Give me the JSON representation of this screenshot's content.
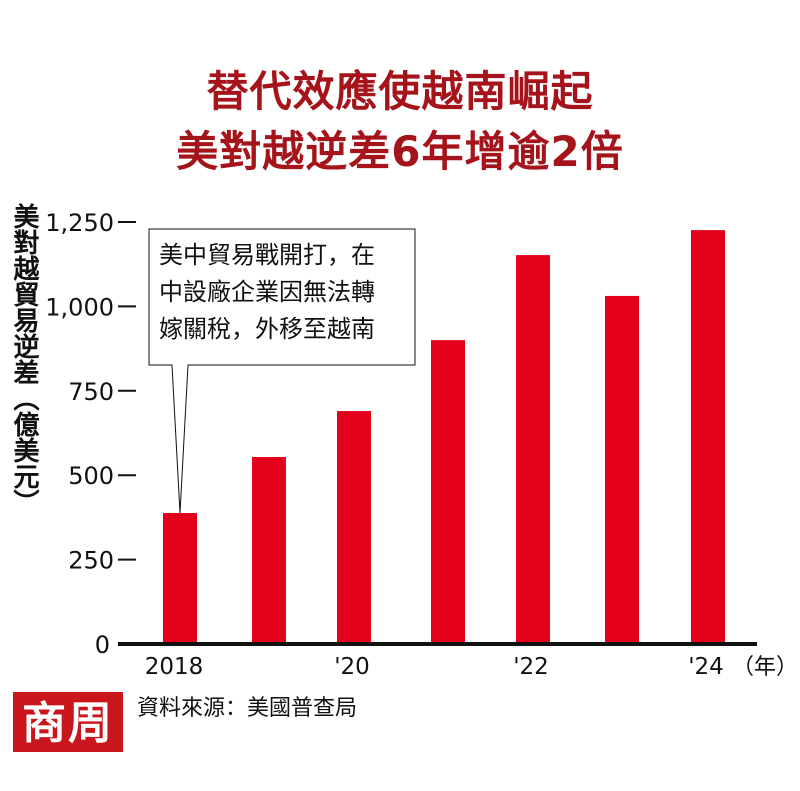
{
  "title_lines": [
    "替代效應使越南崛起",
    "美對越逆差6年增逾2倍"
  ],
  "annotation_lines": [
    "美中貿易戰開打，在",
    "中設廠企業因無法轉",
    "嫁關稅，外移至越南"
  ],
  "source": "資料來源：美國普查局",
  "logo": "商周",
  "chart_data": {
    "type": "bar",
    "title": "替代效應使越南崛起 美對越逆差6年增逾2倍",
    "ylabel": "美對越貿易逆差（億美元）",
    "xlabel": "",
    "x_unit": "（年）",
    "categories": [
      "2018",
      "2019",
      "2020",
      "2021",
      "2022",
      "2023",
      "2024"
    ],
    "x_tick_labels": [
      "2018",
      "",
      "'20",
      "",
      "'22",
      "",
      "'24"
    ],
    "values": [
      388,
      554,
      690,
      900,
      1152,
      1031,
      1226
    ],
    "ylim": [
      0,
      1250
    ],
    "y_ticks": [
      0,
      250,
      500,
      750,
      1000,
      1250
    ],
    "y_tick_labels": [
      "0",
      "250",
      "500",
      "750",
      "1,000",
      "1,250"
    ],
    "grid": false,
    "bar_color": "#e3001b",
    "annotation_target": "2018"
  }
}
